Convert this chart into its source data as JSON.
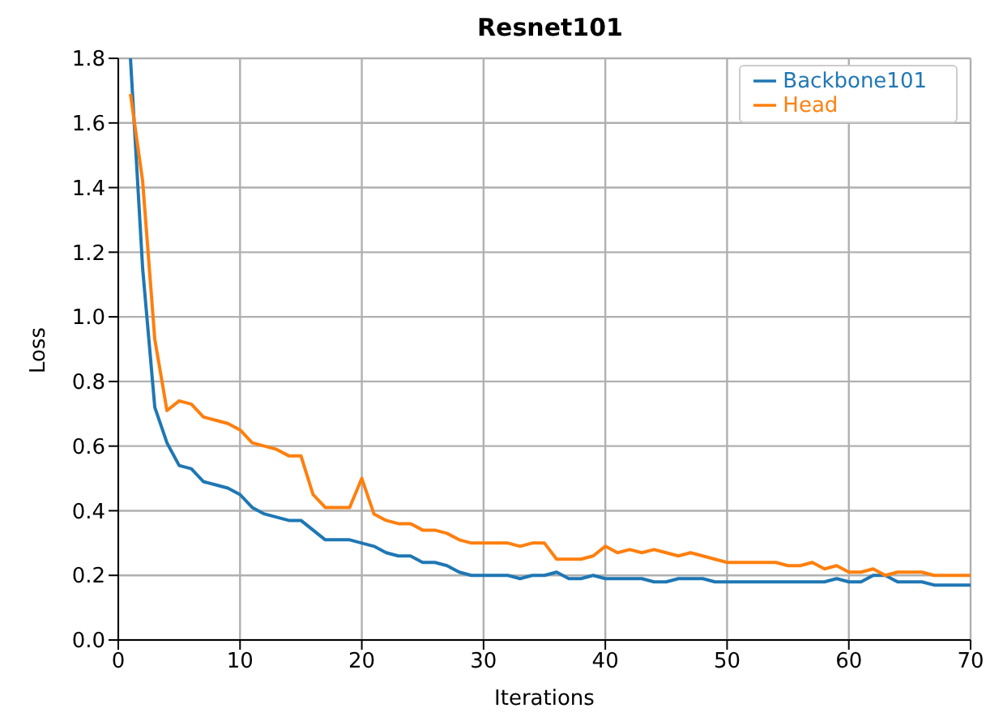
{
  "chart_data": {
    "type": "line",
    "title": "Resnet101",
    "xlabel": "Iterations",
    "ylabel": "Loss",
    "x": [
      1,
      2,
      3,
      4,
      5,
      6,
      7,
      8,
      9,
      10,
      11,
      12,
      13,
      14,
      15,
      16,
      17,
      18,
      19,
      20,
      21,
      22,
      23,
      24,
      25,
      26,
      27,
      28,
      29,
      30,
      31,
      32,
      33,
      34,
      35,
      36,
      37,
      38,
      39,
      40,
      41,
      42,
      43,
      44,
      45,
      46,
      47,
      48,
      49,
      50,
      51,
      52,
      53,
      54,
      55,
      56,
      57,
      58,
      59,
      60,
      61,
      62,
      63,
      64,
      65,
      66,
      67,
      68,
      69,
      70
    ],
    "series": [
      {
        "name": "Backbone101",
        "color": "#1f77b4",
        "values": [
          1.8,
          1.15,
          0.72,
          0.61,
          0.54,
          0.53,
          0.49,
          0.48,
          0.47,
          0.45,
          0.41,
          0.39,
          0.38,
          0.37,
          0.37,
          0.34,
          0.31,
          0.31,
          0.31,
          0.3,
          0.29,
          0.27,
          0.26,
          0.26,
          0.24,
          0.24,
          0.23,
          0.21,
          0.2,
          0.2,
          0.2,
          0.2,
          0.19,
          0.2,
          0.2,
          0.21,
          0.19,
          0.19,
          0.2,
          0.19,
          0.19,
          0.19,
          0.19,
          0.18,
          0.18,
          0.19,
          0.19,
          0.19,
          0.18,
          0.18,
          0.18,
          0.18,
          0.18,
          0.18,
          0.18,
          0.18,
          0.18,
          0.18,
          0.19,
          0.18,
          0.18,
          0.2,
          0.2,
          0.18,
          0.18,
          0.18,
          0.17,
          0.17,
          0.17,
          0.17
        ]
      },
      {
        "name": "Head",
        "color": "#ff7f0e",
        "values": [
          1.69,
          1.42,
          0.93,
          0.71,
          0.74,
          0.73,
          0.69,
          0.68,
          0.67,
          0.65,
          0.61,
          0.6,
          0.59,
          0.57,
          0.57,
          0.45,
          0.41,
          0.41,
          0.41,
          0.5,
          0.39,
          0.37,
          0.36,
          0.36,
          0.34,
          0.34,
          0.33,
          0.31,
          0.3,
          0.3,
          0.3,
          0.3,
          0.29,
          0.3,
          0.3,
          0.25,
          0.25,
          0.25,
          0.26,
          0.29,
          0.27,
          0.28,
          0.27,
          0.28,
          0.27,
          0.26,
          0.27,
          0.26,
          0.25,
          0.24,
          0.24,
          0.24,
          0.24,
          0.24,
          0.23,
          0.23,
          0.24,
          0.22,
          0.23,
          0.21,
          0.21,
          0.22,
          0.2,
          0.21,
          0.21,
          0.21,
          0.2,
          0.2,
          0.2,
          0.2
        ]
      }
    ],
    "xlim": [
      0,
      70
    ],
    "xticks": [
      0,
      10,
      20,
      30,
      40,
      50,
      60,
      70
    ],
    "ylim": [
      0,
      1.8
    ],
    "yticks": [
      {
        "value": 0,
        "label": "0.0"
      },
      {
        "value": 0.2,
        "label": "0.2"
      },
      {
        "value": 0.4,
        "label": "0.4"
      },
      {
        "value": 0.6,
        "label": "0.6"
      },
      {
        "value": 0.8,
        "label": "0.8"
      },
      {
        "value": 1,
        "label": "1.0"
      },
      {
        "value": 1.2,
        "label": "1.2"
      },
      {
        "value": 1.4,
        "label": "1.4"
      },
      {
        "value": 1.6,
        "label": "1.6"
      },
      {
        "value": 1.8,
        "label": "1.8"
      }
    ],
    "grid": true,
    "legend": "top right",
    "marker": "none",
    "line_style": "solid"
  }
}
